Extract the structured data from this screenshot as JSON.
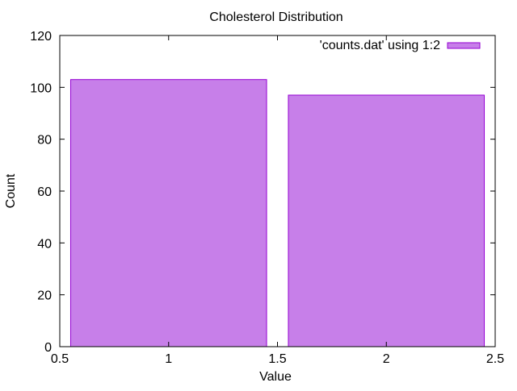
{
  "chart_data": {
    "type": "bar",
    "title": "Cholesterol Distribution",
    "xlabel": "Value",
    "ylabel": "Count",
    "xlim": [
      0.5,
      2.5
    ],
    "ylim": [
      0,
      120
    ],
    "xticks": [
      0.5,
      1,
      1.5,
      2,
      2.5
    ],
    "xtick_labels": [
      "0.5",
      "1",
      "1.5",
      "2",
      "2.5"
    ],
    "yticks": [
      0,
      20,
      40,
      60,
      80,
      100,
      120
    ],
    "ytick_labels": [
      "0",
      "20",
      "40",
      "60",
      "80",
      "100",
      "120"
    ],
    "grid": false,
    "legend_position": "top-right",
    "series": [
      {
        "name": "'counts.dat' using 1:2",
        "color": "#c77fe9",
        "edge_color": "#9400d3",
        "bar_width": 0.9,
        "x": [
          1,
          2
        ],
        "values": [
          103,
          97
        ]
      }
    ]
  }
}
